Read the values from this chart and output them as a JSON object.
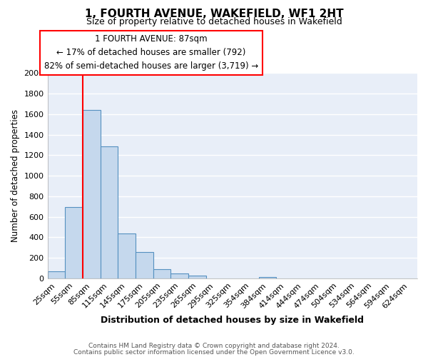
{
  "title": "1, FOURTH AVENUE, WAKEFIELD, WF1 2HT",
  "subtitle": "Size of property relative to detached houses in Wakefield",
  "xlabel": "Distribution of detached houses by size in Wakefield",
  "ylabel": "Number of detached properties",
  "bar_labels": [
    "25sqm",
    "55sqm",
    "85sqm",
    "115sqm",
    "145sqm",
    "175sqm",
    "205sqm",
    "235sqm",
    "265sqm",
    "295sqm",
    "325sqm",
    "354sqm",
    "384sqm",
    "414sqm",
    "444sqm",
    "474sqm",
    "504sqm",
    "534sqm",
    "564sqm",
    "594sqm",
    "624sqm"
  ],
  "bar_values": [
    65,
    695,
    1640,
    1285,
    440,
    255,
    90,
    50,
    30,
    0,
    0,
    0,
    15,
    0,
    0,
    0,
    0,
    0,
    0,
    0,
    0
  ],
  "bar_color": "#c5d8ed",
  "bar_edge_color": "#5590c0",
  "ylim": [
    0,
    2000
  ],
  "yticks": [
    0,
    200,
    400,
    600,
    800,
    1000,
    1200,
    1400,
    1600,
    1800,
    2000
  ],
  "red_line_index": 2,
  "annotation_title": "1 FOURTH AVENUE: 87sqm",
  "annotation_line1": "← 17% of detached houses are smaller (792)",
  "annotation_line2": "82% of semi-detached houses are larger (3,719) →",
  "footer_line1": "Contains HM Land Registry data © Crown copyright and database right 2024.",
  "footer_line2": "Contains public sector information licensed under the Open Government Licence v3.0.",
  "plot_bg_color": "#e8eef8",
  "fig_bg_color": "#ffffff",
  "grid_color": "#ffffff"
}
